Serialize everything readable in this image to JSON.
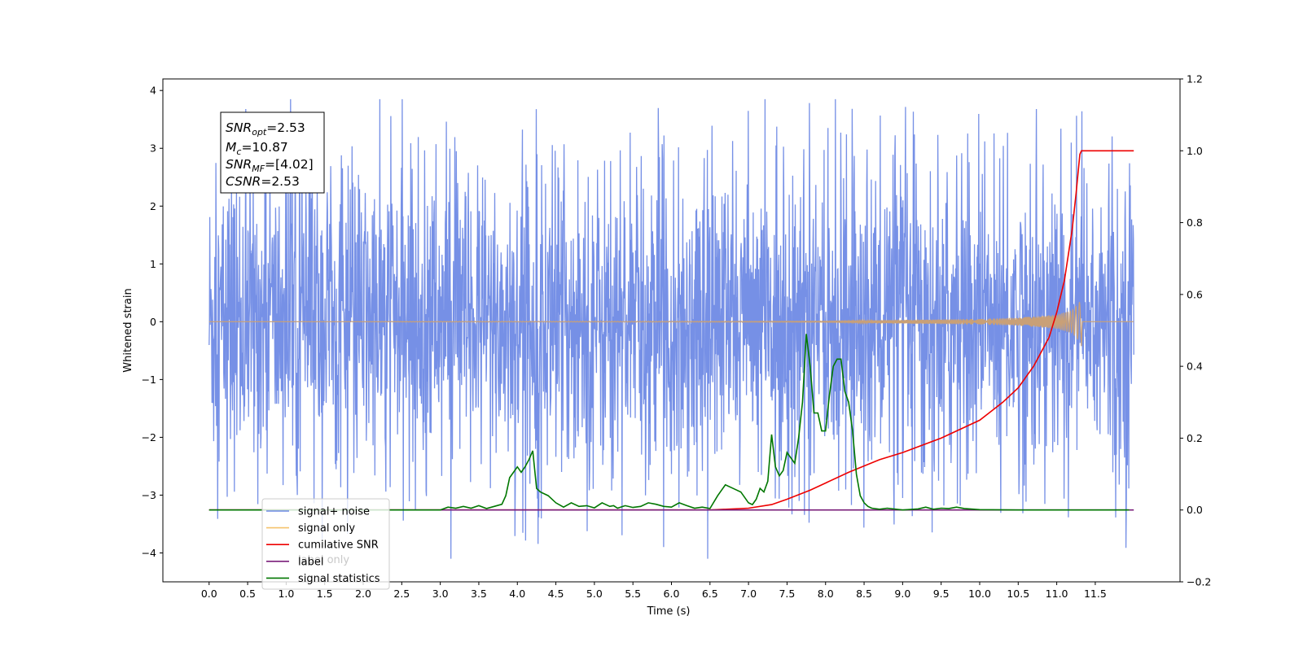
{
  "chart_data": {
    "type": "line",
    "title": "",
    "xlabel": "Time (s)",
    "ylabel": "Whitened strain",
    "xlim": [
      -0.6,
      12.6
    ],
    "ylim": [
      -4.5,
      4.2
    ],
    "y2lim": [
      -0.2,
      1.2
    ],
    "grid": false,
    "legend_position": "lower-left",
    "x_ticks": [
      "0.0",
      "0.5",
      "1.0",
      "1.5",
      "2.0",
      "2.5",
      "3.0",
      "3.5",
      "4.0",
      "4.5",
      "5.0",
      "5.5",
      "6.0",
      "6.5",
      "7.0",
      "7.5",
      "8.0",
      "8.5",
      "9.0",
      "9.5",
      "10.0",
      "10.5",
      "11.0",
      "11.5"
    ],
    "y_ticks": [
      "4",
      "3",
      "2",
      "1",
      "0",
      "−1",
      "−2",
      "−3",
      "−4"
    ],
    "y2_ticks": [
      "1.2",
      "1.0",
      "0.8",
      "0.6",
      "0.4",
      "0.2",
      "0.0",
      "−0.2"
    ],
    "info_box": {
      "snr_opt": {
        "base": "SNR",
        "sub": "opt",
        "value": "=2.53"
      },
      "mc": {
        "base": "M",
        "sub": "c",
        "value": "=10.87"
      },
      "snr_mf": {
        "base": "SNR",
        "sub": "MF",
        "value": "=[4.02]"
      },
      "csnr": {
        "base": "CSNR",
        "value": "=2.53"
      }
    },
    "legend": [
      {
        "key": "signal_noise",
        "label": "signal+ noise",
        "color": "#6f8ae5"
      },
      {
        "key": "signal_only",
        "label": "signal only",
        "color": "#f5c26b"
      },
      {
        "key": "cumulative",
        "label": "cumilative SNR",
        "color": "#ee0000"
      },
      {
        "key": "label",
        "label": "label",
        "color": "#7a1e7a"
      },
      {
        "key": "statistics",
        "label": "signal statistics",
        "color": "#007700"
      }
    ],
    "legend_overlap_text": "label only",
    "series": [
      {
        "name": "signal+ noise",
        "axis": "left",
        "color": "#6f8ae5",
        "x_range": [
          0.0,
          12.0
        ],
        "envelope_amplitude": 1.3,
        "spike_max": [
          3.85,
          -4.1
        ]
      },
      {
        "name": "signal only",
        "axis": "left",
        "color": "#c9a077",
        "x": [
          0.0,
          8.0,
          9.0,
          10.0,
          10.5,
          11.0,
          11.2,
          11.3,
          11.32,
          11.33,
          12.0
        ],
        "envelope": [
          0.0,
          0.01,
          0.03,
          0.05,
          0.07,
          0.12,
          0.2,
          0.35,
          0.45,
          0.0,
          0.0
        ]
      },
      {
        "name": "cumilative SNR",
        "axis": "right",
        "color": "#ee0000",
        "x": [
          0.0,
          6.5,
          7.0,
          7.3,
          7.5,
          7.8,
          8.0,
          8.3,
          8.7,
          9.0,
          9.5,
          10.0,
          10.3,
          10.5,
          10.7,
          10.9,
          11.0,
          11.1,
          11.2,
          11.25,
          11.3,
          11.32,
          11.35,
          12.0
        ],
        "y": [
          0.0,
          0.0,
          0.005,
          0.015,
          0.03,
          0.055,
          0.075,
          0.105,
          0.14,
          0.16,
          0.2,
          0.25,
          0.3,
          0.34,
          0.4,
          0.48,
          0.55,
          0.64,
          0.78,
          0.88,
          0.99,
          1.0,
          1.0,
          1.0
        ]
      },
      {
        "name": "label",
        "axis": "right",
        "color": "#7a1e7a",
        "x": [
          0.0,
          12.0
        ],
        "y": [
          0.0,
          0.0
        ]
      },
      {
        "name": "signal statistics",
        "axis": "right",
        "color": "#007700",
        "x": [
          0.0,
          2.5,
          3.0,
          3.1,
          3.2,
          3.3,
          3.4,
          3.5,
          3.6,
          3.7,
          3.8,
          3.85,
          3.9,
          4.0,
          4.05,
          4.1,
          4.15,
          4.2,
          4.25,
          4.3,
          4.4,
          4.5,
          4.6,
          4.7,
          4.8,
          4.9,
          5.0,
          5.1,
          5.2,
          5.25,
          5.3,
          5.4,
          5.5,
          5.6,
          5.7,
          5.8,
          5.9,
          6.0,
          6.1,
          6.2,
          6.3,
          6.4,
          6.5,
          6.6,
          6.7,
          6.8,
          6.9,
          7.0,
          7.05,
          7.1,
          7.15,
          7.2,
          7.25,
          7.3,
          7.35,
          7.4,
          7.45,
          7.5,
          7.6,
          7.65,
          7.7,
          7.75,
          7.8,
          7.85,
          7.9,
          7.95,
          8.0,
          8.05,
          8.1,
          8.15,
          8.2,
          8.25,
          8.3,
          8.35,
          8.4,
          8.45,
          8.5,
          8.55,
          8.6,
          8.7,
          8.8,
          9.0,
          9.2,
          9.3,
          9.4,
          9.5,
          9.6,
          9.7,
          9.8,
          10.0,
          10.5,
          11.0,
          11.94
        ],
        "y": [
          0.0,
          0.0,
          0.0,
          0.008,
          0.005,
          0.01,
          0.005,
          0.012,
          0.004,
          0.01,
          0.016,
          0.04,
          0.09,
          0.12,
          0.105,
          0.12,
          0.14,
          0.165,
          0.06,
          0.05,
          0.04,
          0.02,
          0.008,
          0.02,
          0.01,
          0.012,
          0.006,
          0.02,
          0.01,
          0.012,
          0.005,
          0.012,
          0.007,
          0.01,
          0.02,
          0.016,
          0.01,
          0.008,
          0.02,
          0.012,
          0.005,
          0.008,
          0.004,
          0.04,
          0.07,
          0.06,
          0.05,
          0.02,
          0.015,
          0.03,
          0.06,
          0.05,
          0.08,
          0.21,
          0.12,
          0.095,
          0.11,
          0.16,
          0.13,
          0.2,
          0.3,
          0.49,
          0.4,
          0.27,
          0.27,
          0.22,
          0.22,
          0.32,
          0.4,
          0.42,
          0.42,
          0.33,
          0.3,
          0.22,
          0.1,
          0.04,
          0.02,
          0.01,
          0.005,
          0.002,
          0.005,
          0.0,
          0.003,
          0.008,
          0.002,
          0.005,
          0.004,
          0.008,
          0.004,
          0.001,
          0.0,
          0.0,
          0.0
        ]
      }
    ]
  }
}
